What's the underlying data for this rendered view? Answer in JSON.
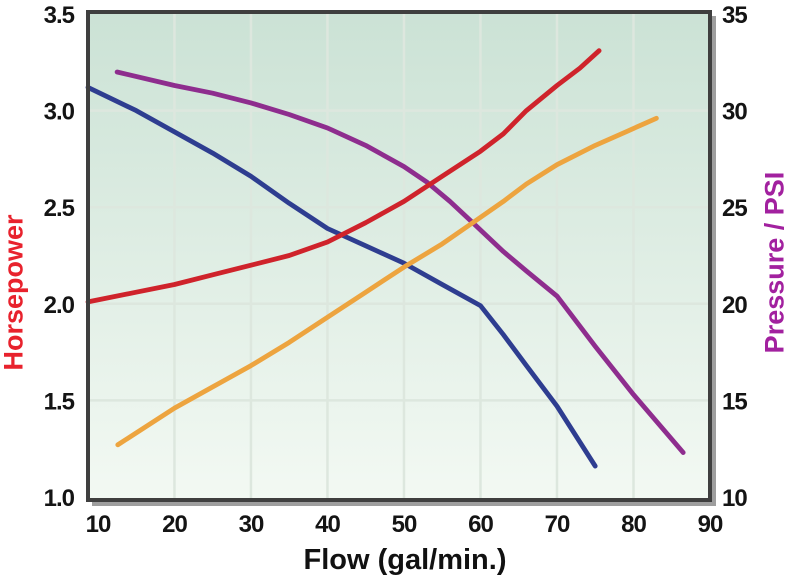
{
  "chart_data": {
    "type": "line",
    "title": "",
    "x": {
      "label": "Flow (gal/min.)",
      "min": 8.7,
      "max": 90,
      "ticks": [
        10,
        20,
        30,
        40,
        50,
        60,
        70,
        80,
        90
      ]
    },
    "y_left": {
      "label": "Horsepower",
      "label_color": "#e8222d",
      "min": 1.0,
      "max": 3.5,
      "ticks": [
        {
          "value": 3.5,
          "label": "3.5"
        },
        {
          "value": 3.0,
          "label": "3.0"
        },
        {
          "value": 2.5,
          "label": "2.5"
        },
        {
          "value": 2.0,
          "label": "2.0"
        },
        {
          "value": 1.5,
          "label": "1.5"
        },
        {
          "value": 1.0,
          "label": "1.0"
        }
      ]
    },
    "y_right": {
      "label": "Pressure / PSI",
      "label_color": "#a2219f",
      "min": 10,
      "max": 35,
      "ticks": [
        {
          "value": 35,
          "label": "35"
        },
        {
          "value": 30,
          "label": "30"
        },
        {
          "value": 25,
          "label": "25"
        },
        {
          "value": 20,
          "label": "20"
        },
        {
          "value": 15,
          "label": "15"
        },
        {
          "value": 10,
          "label": "10"
        }
      ]
    },
    "grid": {
      "vertical_x": [
        20,
        30,
        40,
        50,
        60,
        70,
        80
      ],
      "horizontal_left_y": [
        1.5,
        2.0,
        2.5,
        3.0
      ]
    },
    "legend": "none",
    "series": [
      {
        "name": "pressure-curve-blue",
        "axis": "right",
        "color": "#2e3d90",
        "points": [
          [
            8.7,
            31.2
          ],
          [
            15,
            30.0
          ],
          [
            20,
            28.9
          ],
          [
            25,
            27.8
          ],
          [
            30,
            26.6
          ],
          [
            35,
            25.2
          ],
          [
            40,
            23.9
          ],
          [
            45,
            23.0
          ],
          [
            50,
            22.1
          ],
          [
            55,
            21.0
          ],
          [
            60,
            19.9
          ],
          [
            63,
            18.4
          ],
          [
            66,
            16.8
          ],
          [
            70,
            14.7
          ],
          [
            75,
            11.6
          ]
        ]
      },
      {
        "name": "pressure-curve-purple",
        "axis": "right",
        "color": "#8e2d8e",
        "points": [
          [
            12.5,
            32.0
          ],
          [
            20,
            31.3
          ],
          [
            25,
            30.9
          ],
          [
            30,
            30.4
          ],
          [
            35,
            29.8
          ],
          [
            40,
            29.1
          ],
          [
            45,
            28.2
          ],
          [
            50,
            27.1
          ],
          [
            53,
            26.3
          ],
          [
            56,
            25.3
          ],
          [
            59,
            24.2
          ],
          [
            63,
            22.7
          ],
          [
            66,
            21.7
          ],
          [
            70,
            20.4
          ],
          [
            75,
            17.8
          ],
          [
            80,
            15.3
          ],
          [
            86.5,
            12.3
          ]
        ]
      },
      {
        "name": "horsepower-curve-red",
        "axis": "left",
        "color": "#cf232b",
        "points": [
          [
            8.7,
            2.01
          ],
          [
            15,
            2.06
          ],
          [
            20,
            2.1
          ],
          [
            25,
            2.15
          ],
          [
            30,
            2.2
          ],
          [
            35,
            2.25
          ],
          [
            40,
            2.32
          ],
          [
            45,
            2.42
          ],
          [
            50,
            2.53
          ],
          [
            55,
            2.66
          ],
          [
            60,
            2.79
          ],
          [
            63,
            2.88
          ],
          [
            66,
            3.0
          ],
          [
            70,
            3.13
          ],
          [
            73,
            3.22
          ],
          [
            75.5,
            3.31
          ]
        ]
      },
      {
        "name": "horsepower-curve-orange",
        "axis": "left",
        "color": "#eda43f",
        "points": [
          [
            12.6,
            1.27
          ],
          [
            20,
            1.46
          ],
          [
            25,
            1.57
          ],
          [
            30,
            1.68
          ],
          [
            35,
            1.8
          ],
          [
            40,
            1.93
          ],
          [
            45,
            2.06
          ],
          [
            50,
            2.19
          ],
          [
            55,
            2.31
          ],
          [
            59,
            2.42
          ],
          [
            63,
            2.53
          ],
          [
            66,
            2.62
          ],
          [
            70,
            2.72
          ],
          [
            75,
            2.82
          ],
          [
            79,
            2.89
          ],
          [
            83,
            2.96
          ]
        ]
      }
    ],
    "plot_style": {
      "background_top": "#cbe2d5",
      "background_bottom": "#f3f9f3",
      "gridline_color": "#dde7de",
      "border_color": "#3f3f3f",
      "border_shadow_color": "#9e9e9e",
      "tick_label_color": "#141414"
    }
  }
}
